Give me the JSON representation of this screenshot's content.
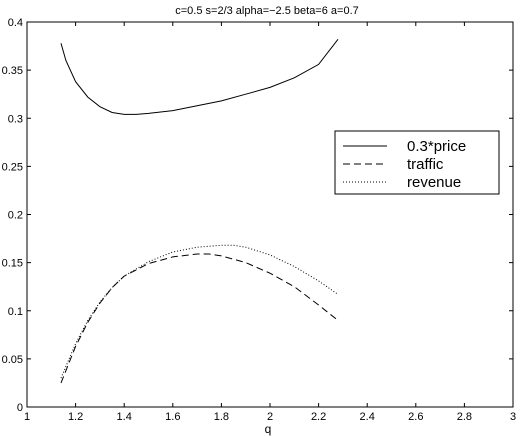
{
  "chart_data": {
    "type": "line",
    "title": "c=0.5 s=2/3 alpha=−2.5 beta=6 a=0.7",
    "xlabel": "q",
    "ylabel": "",
    "xlim": [
      1,
      3
    ],
    "ylim": [
      0,
      0.4
    ],
    "xticks": [
      1,
      1.2,
      1.4,
      1.6,
      1.8,
      2,
      2.2,
      2.4,
      2.6,
      2.8,
      3
    ],
    "xtick_labels": [
      "1",
      "1.2",
      "1.4",
      "1.6",
      "1.8",
      "2",
      "2.2",
      "2.4",
      "2.6",
      "2.8",
      "3"
    ],
    "yticks": [
      0,
      0.05,
      0.1,
      0.15,
      0.2,
      0.25,
      0.3,
      0.35,
      0.4
    ],
    "ytick_labels": [
      "0",
      "0.05",
      "0.1",
      "0.15",
      "0.2",
      "0.25",
      "0.3",
      "0.35",
      "0.4"
    ],
    "grid": false,
    "legend_position": "right",
    "series": [
      {
        "name": "0.3*price",
        "style": "solid",
        "color": "#000000",
        "x": [
          1.14,
          1.16,
          1.2,
          1.25,
          1.3,
          1.35,
          1.4,
          1.45,
          1.5,
          1.6,
          1.7,
          1.8,
          1.9,
          2.0,
          2.1,
          2.2,
          2.28
        ],
        "y": [
          0.378,
          0.36,
          0.338,
          0.322,
          0.312,
          0.306,
          0.304,
          0.304,
          0.305,
          0.308,
          0.313,
          0.318,
          0.325,
          0.332,
          0.342,
          0.356,
          0.382
        ]
      },
      {
        "name": "traffic",
        "style": "dashed",
        "color": "#000000",
        "x": [
          1.14,
          1.2,
          1.25,
          1.3,
          1.35,
          1.4,
          1.5,
          1.6,
          1.7,
          1.75,
          1.8,
          1.9,
          2.0,
          2.1,
          2.2,
          2.28
        ],
        "y": [
          0.025,
          0.063,
          0.088,
          0.108,
          0.124,
          0.136,
          0.149,
          0.156,
          0.159,
          0.159,
          0.157,
          0.15,
          0.139,
          0.125,
          0.106,
          0.09
        ]
      },
      {
        "name": "revenue",
        "style": "dotted",
        "color": "#000000",
        "x": [
          1.14,
          1.2,
          1.25,
          1.3,
          1.35,
          1.4,
          1.5,
          1.6,
          1.7,
          1.8,
          1.85,
          1.9,
          2.0,
          2.1,
          2.2,
          2.28
        ],
        "y": [
          0.03,
          0.066,
          0.09,
          0.109,
          0.124,
          0.136,
          0.151,
          0.161,
          0.166,
          0.168,
          0.168,
          0.166,
          0.158,
          0.146,
          0.131,
          0.117
        ]
      }
    ]
  }
}
